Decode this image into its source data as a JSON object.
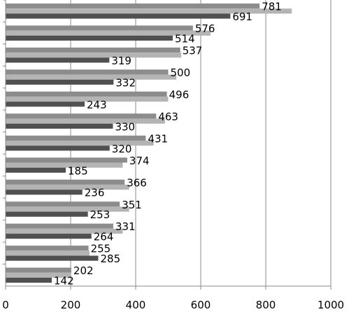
{
  "chart_data": {
    "type": "bar",
    "orientation": "horizontal",
    "title": "",
    "xlabel": "",
    "ylabel": "",
    "xlim": [
      0,
      1000
    ],
    "xticks": [
      0,
      200,
      400,
      600,
      800,
      1000
    ],
    "xtick_labels": [
      "0",
      "200",
      "400",
      "600",
      "800",
      "1000"
    ],
    "grid": "vertical",
    "legend": "none",
    "groups": [
      {
        "values": [
          781,
          880,
          691
        ],
        "labels": [
          "781",
          "",
          "691"
        ]
      },
      {
        "values": [
          576,
          630,
          514
        ],
        "labels": [
          "576",
          "",
          "514"
        ]
      },
      {
        "values": [
          537,
          540,
          319
        ],
        "labels": [
          "537",
          "",
          "319"
        ]
      },
      {
        "values": [
          500,
          525,
          332
        ],
        "labels": [
          "500",
          "",
          "332"
        ]
      },
      {
        "values": [
          496,
          500,
          243
        ],
        "labels": [
          "496",
          "",
          "243"
        ]
      },
      {
        "values": [
          463,
          490,
          330
        ],
        "labels": [
          "463",
          "",
          "330"
        ]
      },
      {
        "values": [
          431,
          455,
          320
        ],
        "labels": [
          "431",
          "",
          "320"
        ]
      },
      {
        "values": [
          374,
          360,
          185
        ],
        "labels": [
          "374",
          "",
          "185"
        ]
      },
      {
        "values": [
          366,
          380,
          236
        ],
        "labels": [
          "366",
          "",
          "236"
        ]
      },
      {
        "values": [
          351,
          380,
          253
        ],
        "labels": [
          "351",
          "",
          "253"
        ]
      },
      {
        "values": [
          331,
          360,
          264
        ],
        "labels": [
          "331",
          "",
          "264"
        ]
      },
      {
        "values": [
          255,
          258,
          285
        ],
        "labels": [
          "255",
          "",
          "285"
        ]
      },
      {
        "values": [
          202,
          200,
          142
        ],
        "labels": [
          "202",
          "",
          "142"
        ]
      }
    ],
    "series_colors": [
      "#8c8c8c",
      "#b4b4b4",
      "#505050"
    ]
  }
}
